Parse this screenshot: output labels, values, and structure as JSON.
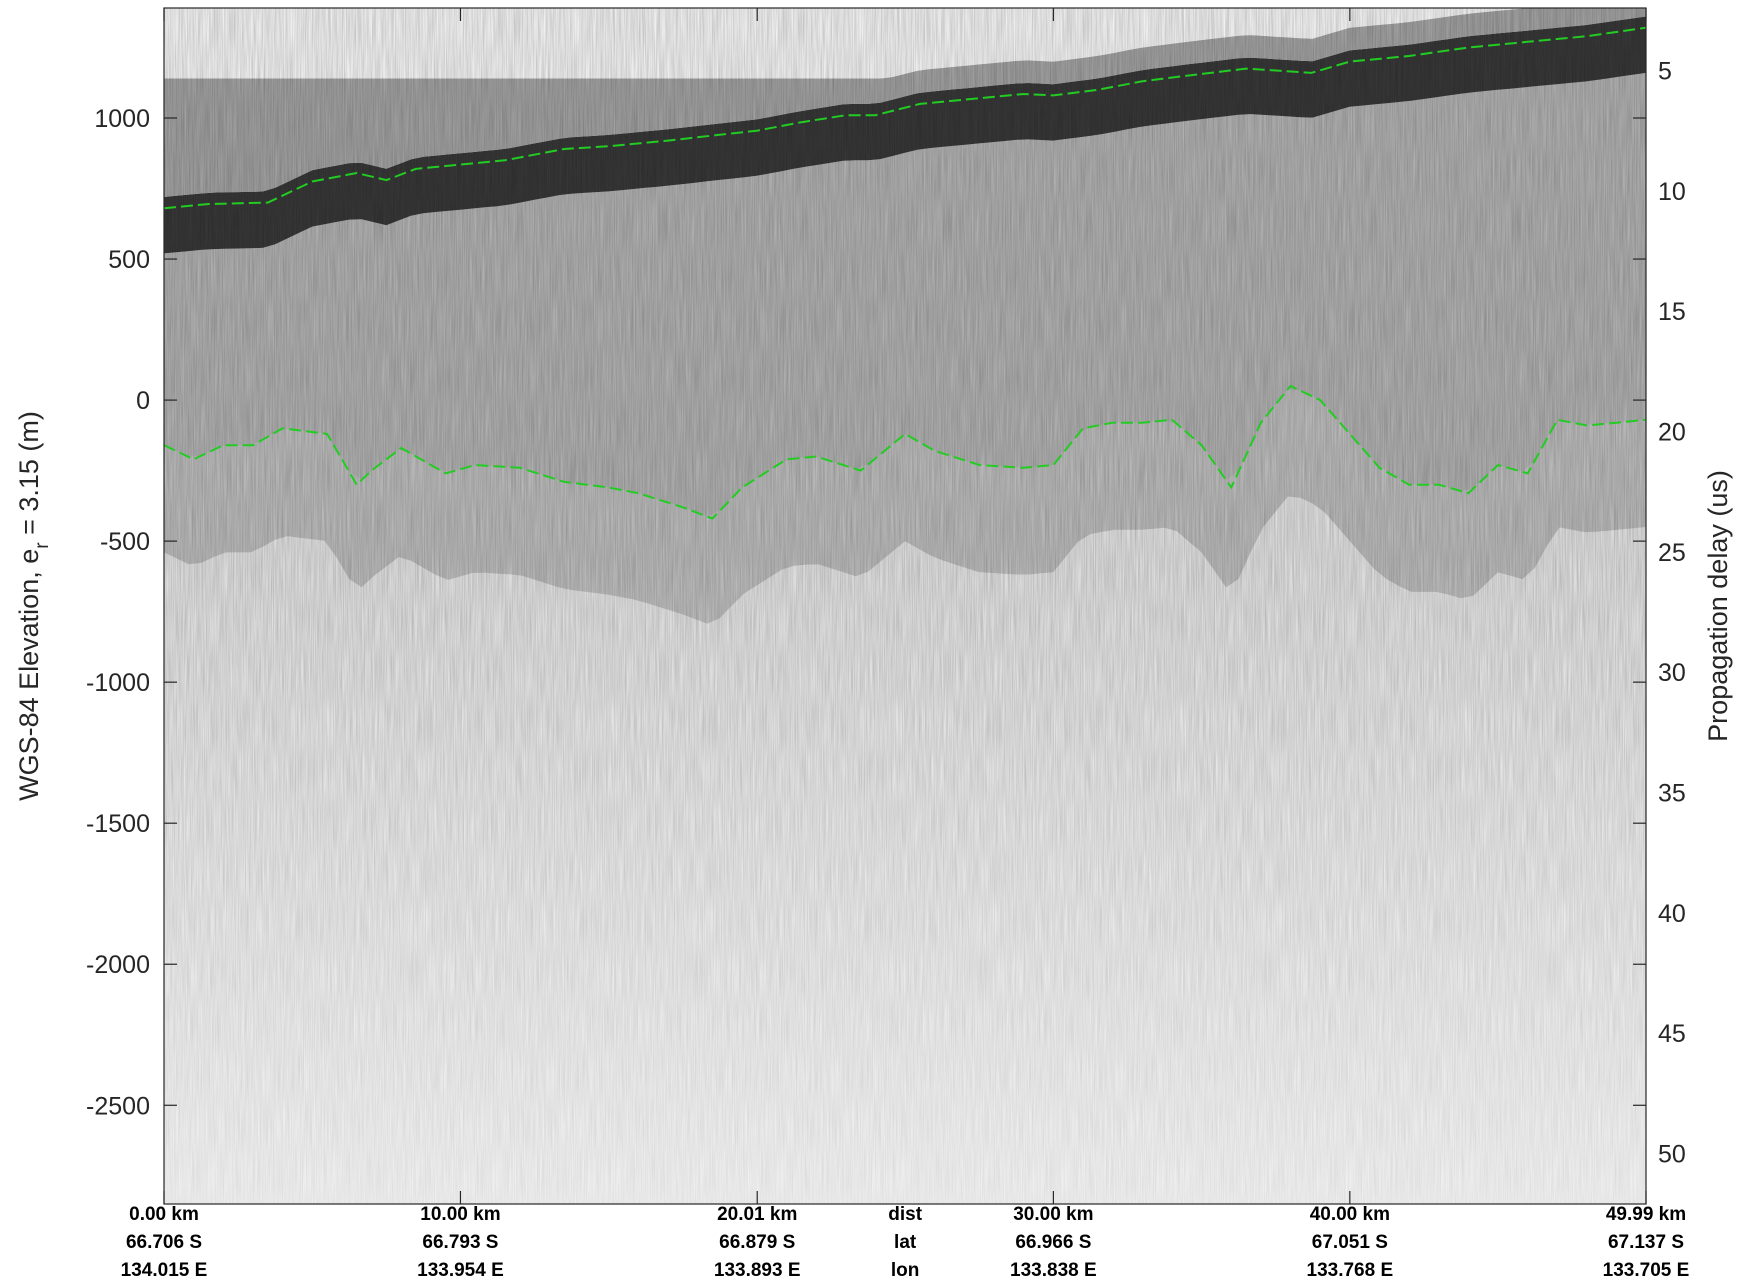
{
  "chart_data": {
    "type": "radargram",
    "ylabel_left_prefix": "WGS-84 Elevation, e",
    "ylabel_left_subscript": "r",
    "ylabel_left_suffix": " = 3.15 (m)",
    "ylabel_right": "Propagation delay (us)",
    "left_axis": {
      "ylim": [
        -2850,
        1390
      ],
      "ticks": [
        1000,
        500,
        0,
        -500,
        -1000,
        -1500,
        -2000,
        -2500
      ],
      "tick_labels": [
        "1000",
        "500",
        "0",
        "-500",
        "-1000",
        "-1500",
        "-2000",
        "-2500"
      ]
    },
    "right_axis": {
      "ylim": [
        2.4,
        52.1
      ],
      "ticks": [
        5,
        10,
        15,
        20,
        25,
        30,
        35,
        40,
        45,
        50
      ],
      "tick_labels": [
        "5",
        "10",
        "15",
        "20",
        "25",
        "30",
        "35",
        "40",
        "45",
        "50"
      ]
    },
    "x_axis": {
      "xlim": [
        0,
        49.99
      ],
      "ticks": [
        0,
        10,
        20.01,
        30,
        40,
        49.99
      ],
      "row_names": {
        "dist": "dist",
        "lat": "lat",
        "lon": "lon"
      },
      "row_names_x": 25,
      "dist_labels": [
        "0.00 km",
        "10.00 km",
        "20.01 km",
        "30.00 km",
        "40.00 km",
        "49.99 km"
      ],
      "lat_labels": [
        "66.706 S",
        "66.793 S",
        "66.879 S",
        "66.966 S",
        "67.051 S",
        "67.137 S"
      ],
      "lon_labels": [
        "134.015 E",
        "133.954 E",
        "133.893 E",
        "133.838 E",
        "133.768 E",
        "133.705 E"
      ]
    },
    "surface_pick": {
      "name": "surface",
      "color": "#22cc22",
      "x": [
        0,
        1.5,
        3.5,
        5,
        6.5,
        7.5,
        8.5,
        10,
        11.5,
        13.5,
        15,
        17,
        18.7,
        20,
        21.5,
        23,
        24,
        25.5,
        27,
        29,
        30,
        31.5,
        33,
        34.5,
        36.5,
        38,
        38.7,
        40,
        42,
        44,
        46,
        48,
        49.99
      ],
      "y": [
        680,
        695,
        700,
        775,
        805,
        780,
        820,
        835,
        850,
        890,
        900,
        920,
        940,
        955,
        985,
        1010,
        1010,
        1050,
        1065,
        1085,
        1080,
        1100,
        1130,
        1150,
        1175,
        1165,
        1160,
        1200,
        1220,
        1250,
        1270,
        1290,
        1320
      ]
    },
    "bed_pick": {
      "name": "bed",
      "color": "#22cc22",
      "x": [
        0,
        1,
        2,
        3,
        4,
        5.5,
        6.5,
        7,
        8,
        9.5,
        10.5,
        12,
        13.5,
        15,
        16,
        17.5,
        18.5,
        19.5,
        21,
        22,
        23.5,
        25,
        26,
        27.5,
        29,
        30,
        31,
        32,
        33,
        34,
        35,
        36,
        37,
        38,
        39,
        40,
        41,
        42,
        43,
        44,
        45,
        46,
        47,
        48,
        49,
        49.99
      ],
      "y": [
        -160,
        -210,
        -160,
        -160,
        -100,
        -120,
        -300,
        -250,
        -170,
        -260,
        -230,
        -240,
        -290,
        -310,
        -330,
        -380,
        -420,
        -310,
        -210,
        -200,
        -250,
        -120,
        -180,
        -230,
        -240,
        -230,
        -100,
        -80,
        -80,
        -70,
        -160,
        -310,
        -80,
        50,
        0,
        -120,
        -240,
        -300,
        -300,
        -330,
        -230,
        -260,
        -70,
        -90,
        -80,
        -70
      ]
    },
    "echogram": {
      "colormap": "gray",
      "surface_top_start_elevation": 1140,
      "bright_band_width_m": 280
    }
  }
}
